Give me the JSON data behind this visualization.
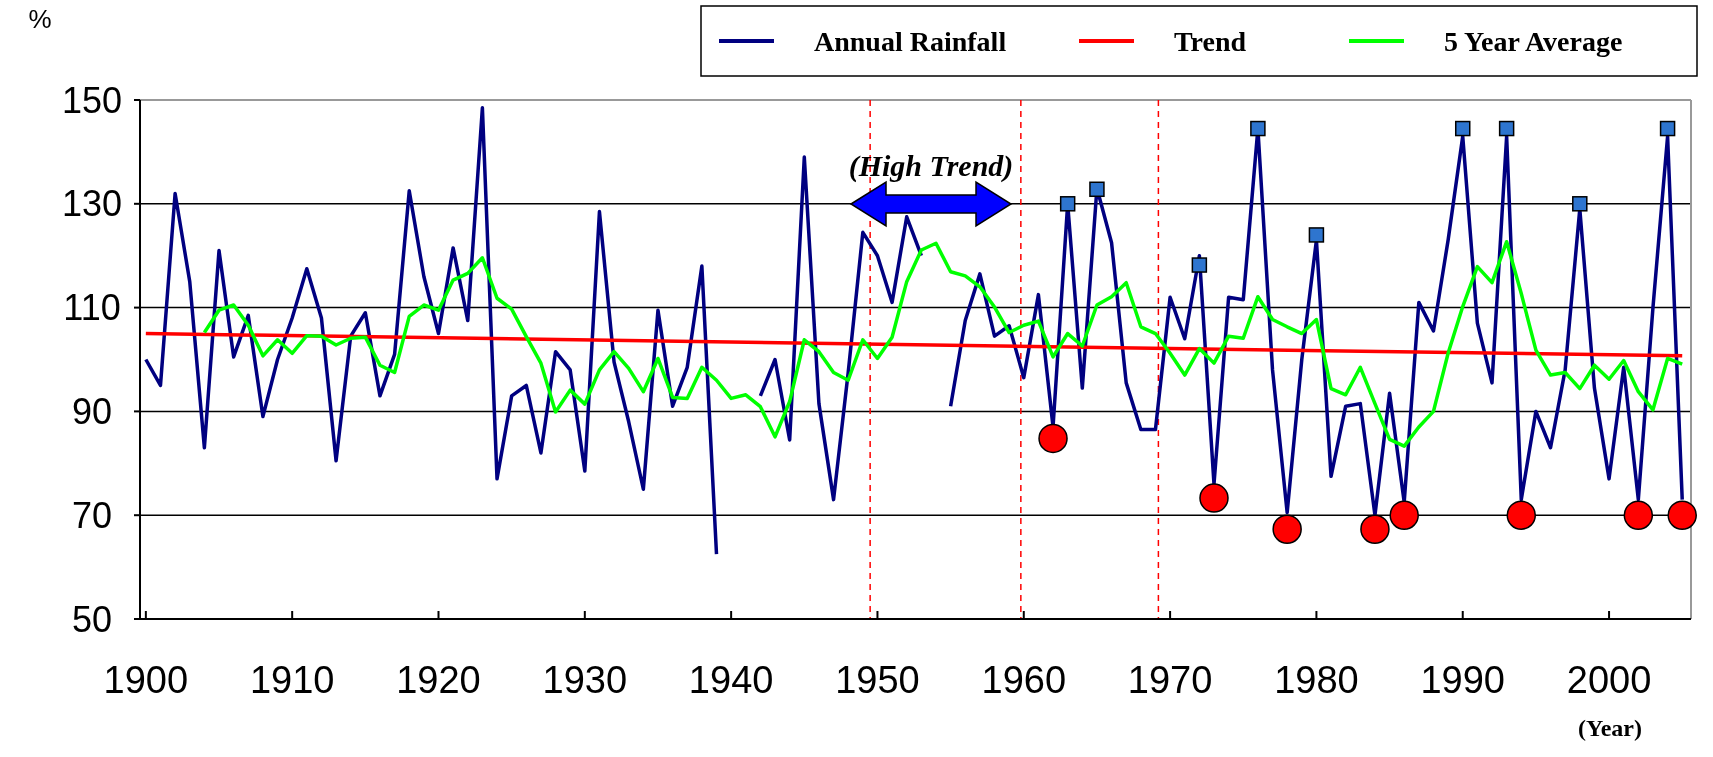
{
  "chart_data": {
    "type": "line",
    "ylabel": "%",
    "xlabel": "(Year)",
    "x": [
      1900,
      1901,
      1902,
      1903,
      1904,
      1905,
      1906,
      1907,
      1908,
      1909,
      1910,
      1911,
      1912,
      1913,
      1914,
      1915,
      1916,
      1917,
      1918,
      1919,
      1920,
      1921,
      1922,
      1923,
      1924,
      1925,
      1926,
      1927,
      1928,
      1929,
      1930,
      1931,
      1932,
      1933,
      1934,
      1935,
      1936,
      1937,
      1938,
      1939,
      1940,
      1941,
      1942,
      1943,
      1944,
      1945,
      1946,
      1947,
      1948,
      1949,
      1950,
      1951,
      1952,
      1953,
      1954,
      1955,
      1956,
      1957,
      1958,
      1959,
      1960,
      1961,
      1962,
      1963,
      1964,
      1965,
      1966,
      1967,
      1968,
      1969,
      1970,
      1971,
      1972,
      1973,
      1974,
      1975,
      1976,
      1977,
      1978,
      1979,
      1980,
      1981,
      1982,
      1983,
      1984,
      1985,
      1986,
      1987,
      1988,
      1989,
      1990,
      1991,
      1992,
      1993,
      1994,
      1995,
      1996,
      1997,
      1998,
      1999,
      2000,
      2001,
      2002,
      2003,
      2004,
      2005
    ],
    "series": [
      {
        "name": "Annual Rainfall",
        "color": "#000080",
        "values": [
          100,
          95,
          132,
          115,
          83,
          121,
          100.5,
          108.5,
          89,
          100,
          108,
          117.5,
          108,
          80.5,
          104.5,
          109,
          93,
          101,
          132.5,
          116,
          105,
          121.5,
          107.5,
          148.5,
          77,
          93,
          95,
          82,
          101.5,
          98,
          78.5,
          128.5,
          99.5,
          88,
          75,
          109.5,
          91,
          98.5,
          118,
          62.5,
          null,
          null,
          93,
          100,
          84.5,
          139,
          91.5,
          73,
          97.5,
          124.5,
          120,
          111,
          127.5,
          120,
          null,
          91,
          107.5,
          116.5,
          104.5,
          106.5,
          96.5,
          112.5,
          87,
          130,
          94.5,
          133,
          122.5,
          95.5,
          86.5,
          86.5,
          112,
          104,
          120,
          76,
          112,
          111.5,
          144.5,
          98,
          70.5,
          100,
          123,
          77.5,
          91,
          91.5,
          70,
          93.5,
          72.5,
          111,
          105.5,
          123,
          143,
          107,
          95.5,
          143,
          73,
          90,
          83,
          98,
          129,
          94.5,
          77,
          98.5,
          73,
          110,
          143,
          73
        ]
      },
      {
        "name": "Trend",
        "color": "#ff0000",
        "x": [
          1900,
          2005
        ],
        "values": [
          105,
          100.7
        ]
      },
      {
        "name": "5 Year Average",
        "color": "#00ff00",
        "x": [
          1904,
          1905,
          1906,
          1907,
          1908,
          1909,
          1910,
          1911,
          1912,
          1913,
          1914,
          1915,
          1916,
          1917,
          1918,
          1919,
          1920,
          1921,
          1922,
          1923,
          1924,
          1925,
          1926,
          1927,
          1928,
          1929,
          1930,
          1931,
          1932,
          1933,
          1934,
          1935,
          1936,
          1937,
          1938,
          1939,
          1940,
          1941,
          1942,
          1943,
          1944,
          1945,
          1946,
          1947,
          1948,
          1949,
          1950,
          1951,
          1952,
          1953,
          1954,
          1955,
          1956,
          1957,
          1958,
          1959,
          1960,
          1961,
          1962,
          1963,
          1964,
          1965,
          1966,
          1967,
          1968,
          1969,
          1970,
          1971,
          1972,
          1973,
          1974,
          1975,
          1976,
          1977,
          1978,
          1979,
          1980,
          1981,
          1982,
          1983,
          1984,
          1985,
          1986,
          1987,
          1988,
          1989,
          1990,
          1991,
          1992,
          1993,
          1994,
          1995,
          1996,
          1997,
          1998,
          1999,
          2000,
          2001,
          2002,
          2003,
          2004,
          2005
        ],
        "values": [
          105.2,
          109.5,
          110.5,
          106.6,
          100.7,
          103.8,
          101.2,
          104.6,
          104.5,
          102.8,
          104.1,
          104.3,
          98.9,
          97.5,
          108.3,
          110.5,
          109.5,
          115.3,
          116.6,
          119.6,
          111.8,
          109.7,
          104.4,
          99.3,
          89.9,
          94.1,
          91.4,
          98,
          101.5,
          98.3,
          93.8,
          100.2,
          92.7,
          92.5,
          98.5,
          96,
          92.5,
          93.2,
          90.9,
          85.1,
          91.9,
          103.8,
          101.5,
          97.5,
          96,
          103.8,
          100.2,
          104.3,
          115,
          121.1,
          122.4,
          116.9,
          116.1,
          114,
          110.1,
          105.2,
          106.6,
          107.4,
          100.5,
          105,
          102.6,
          110.5,
          112.1,
          114.8,
          106.3,
          105,
          101.2,
          97,
          102.1,
          99.3,
          104.5,
          104.1,
          112.1,
          107.7,
          106.3,
          105,
          107.7,
          94.4,
          93.2,
          98.5,
          91.5,
          84.6,
          83.3,
          87,
          90,
          101.2,
          110.2,
          117.9,
          114.8,
          122.7,
          112.7,
          101.8,
          97,
          97.5,
          94.4,
          98.9,
          96.2,
          99.8,
          93.8,
          90.3,
          100.2,
          99.1
        ]
      },
      {
        "type": "scatter",
        "marker": "square",
        "color": "#2e75cf",
        "x": [
          1963,
          1965,
          1972,
          1976,
          1980,
          1990,
          1993,
          1998,
          2004
        ],
        "values": [
          130,
          132.8,
          118.2,
          144.5,
          124,
          144.5,
          144.5,
          130,
          144.5
        ]
      },
      {
        "type": "scatter",
        "marker": "circle",
        "color": "#ff0000",
        "x": [
          1962,
          1973,
          1978,
          1984,
          1986,
          1994,
          2002,
          2005
        ],
        "values": [
          84.8,
          73.3,
          67.3,
          67.3,
          70,
          70,
          70,
          70
        ]
      }
    ],
    "xlim": [
      1899.6,
      2005.6
    ],
    "xticks": [
      1900,
      1910,
      1920,
      1930,
      1940,
      1950,
      1960,
      1970,
      1980,
      1990,
      2000
    ],
    "ylim": [
      50,
      150
    ],
    "yticks": [
      50,
      70,
      90,
      110,
      130,
      150
    ],
    "grid": "y",
    "legend": "top right",
    "line_style": "solid",
    "ref_lines": [
      {
        "axis": "x",
        "value": 1949.5,
        "color": "#ff0000",
        "line_style": "dashed"
      },
      {
        "axis": "x",
        "value": 1959.8,
        "color": "#ff0000",
        "line_style": "dashed"
      },
      {
        "axis": "x",
        "value": 1969.2,
        "color": "#ff0000",
        "line_style": "dashed"
      }
    ],
    "annotations": [
      "(High Trend)"
    ]
  }
}
